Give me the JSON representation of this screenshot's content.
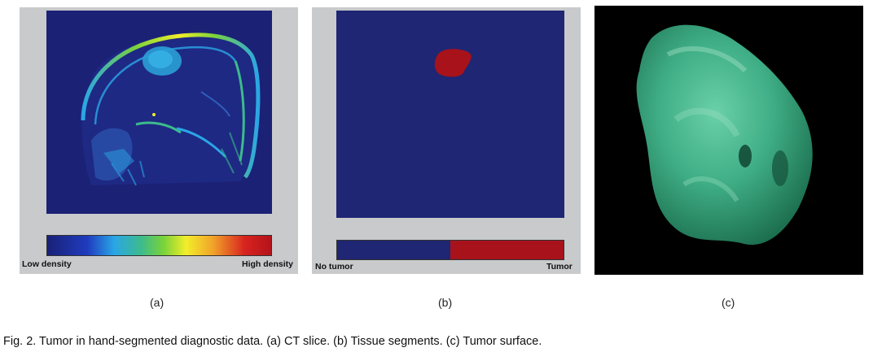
{
  "panel_a": {
    "tag": "(a)",
    "scale_low_label": "Low density",
    "scale_high_label": "High density",
    "colormap": [
      "#1a2176",
      "#1f3cc0",
      "#2aa6e6",
      "#3dbb8c",
      "#7ad33a",
      "#f2ee2a",
      "#f1a32a",
      "#d8241f",
      "#b3131a"
    ]
  },
  "panel_b": {
    "tag": "(b)",
    "scale_low_label": "No tumor",
    "scale_high_label": "Tumor",
    "background_color": "#1f2673",
    "tumor_color": "#a8121a"
  },
  "panel_c": {
    "tag": "(c)",
    "background_color": "#000000",
    "surface_color": "#3fae86"
  },
  "caption": "Fig. 2. Tumor in hand-segmented diagnostic data. (a) CT slice. (b) Tissue segments. (c) Tumor surface."
}
